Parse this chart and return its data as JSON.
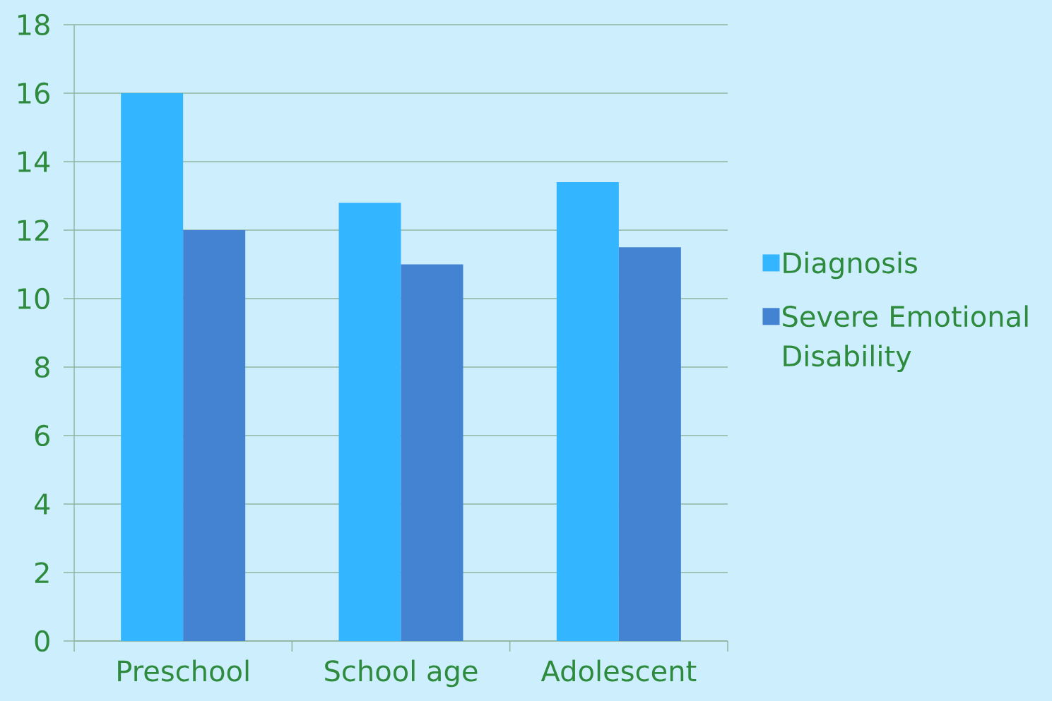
{
  "chart_data": {
    "type": "bar",
    "categories": [
      "Preschool",
      "School age",
      "Adolescent"
    ],
    "series": [
      {
        "name": "Diagnosis",
        "color": "#33b5ff",
        "values": [
          16,
          12.8,
          13.4
        ]
      },
      {
        "name": "Severe Emotional Disability",
        "color": "#4483d1",
        "values": [
          12,
          11,
          11.5
        ]
      }
    ],
    "ylim": [
      0,
      18
    ],
    "yticks": [
      0,
      2,
      4,
      6,
      8,
      10,
      12,
      14,
      16,
      18
    ],
    "grid": "y",
    "legend": "right"
  }
}
